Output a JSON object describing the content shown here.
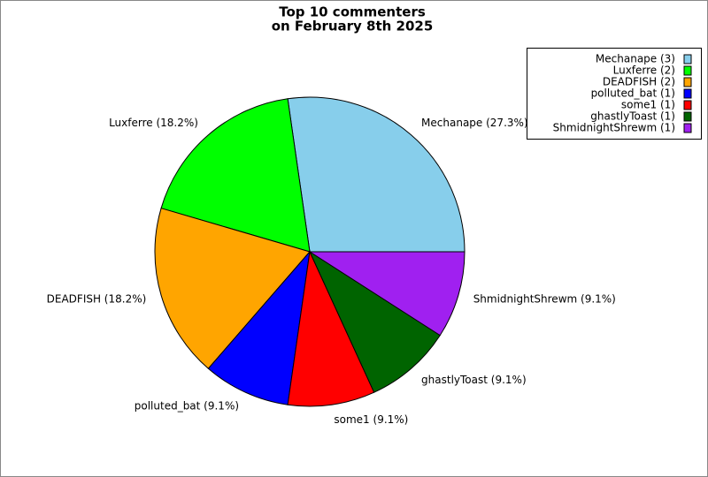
{
  "chart_data": {
    "type": "pie",
    "title_lines": [
      "Top 10 commenters",
      "on February 8th 2025"
    ],
    "values": [
      27.3,
      18.2,
      18.2,
      9.1,
      9.1,
      9.1,
      9.1
    ],
    "value_labels": [
      "Mechanape (27.3%)",
      "Luxferre (18.2%)",
      "DEADFISH (18.2%)",
      "polluted_bat (9.1%)",
      "some1 (9.1%)",
      "ghastlyToast (9.1%)",
      "ShmidnightShrewm (9.1%)"
    ],
    "legend_labels": [
      "Mechanape (3)",
      "Luxferre (2)",
      "DEADFISH (2)",
      "polluted_bat (1)",
      "some1 (1)",
      "ghastlyToast (1)",
      "ShmidnightShrewm (1)"
    ],
    "colors": [
      "#87ceeb",
      "#00ff00",
      "#ffa500",
      "#0000ff",
      "#ff0000",
      "#006400",
      "#a020f0"
    ],
    "legend_position": "upper right"
  }
}
